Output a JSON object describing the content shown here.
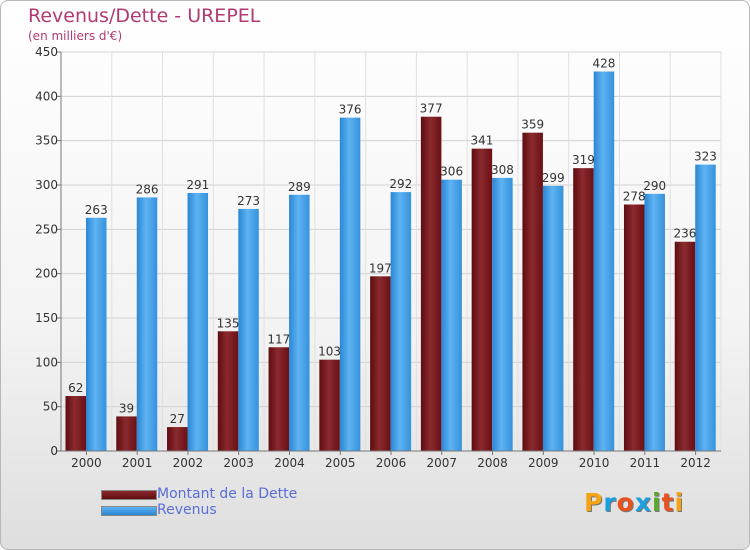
{
  "title": "Revenus/Dette - UREPEL",
  "subtitle": "(en milliers d'€)",
  "logo": {
    "text": "Proxiti",
    "colors": [
      "#f6a312",
      "#1ba0df",
      "#e8521e",
      "#1ba0df",
      "#5aa82c",
      "#e8521e",
      "#f6a312"
    ]
  },
  "chart_data": {
    "type": "bar",
    "categories": [
      "2000",
      "2001",
      "2002",
      "2003",
      "2004",
      "2005",
      "2006",
      "2007",
      "2008",
      "2009",
      "2010",
      "2011",
      "2012"
    ],
    "series": [
      {
        "name": "Montant de la Dette",
        "color": "#7a1419",
        "values": [
          62,
          39,
          27,
          135,
          117,
          103,
          197,
          377,
          341,
          359,
          319,
          278,
          236
        ]
      },
      {
        "name": "Revenus",
        "color": "#3a9ae6",
        "values": [
          263,
          286,
          291,
          273,
          289,
          376,
          292,
          306,
          308,
          299,
          428,
          290,
          323
        ]
      }
    ],
    "ylim": [
      0,
      450
    ],
    "yticks": [
      0,
      50,
      100,
      150,
      200,
      250,
      300,
      350,
      400,
      450
    ],
    "grid": true,
    "legend": "bottom-left"
  }
}
